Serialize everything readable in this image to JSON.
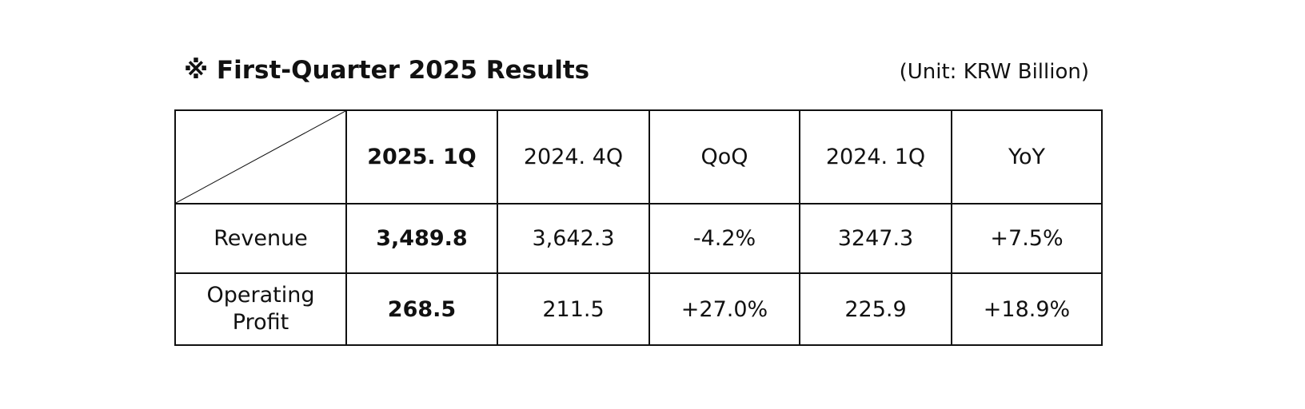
{
  "title": "※ First-Quarter 2025 Results",
  "unit": "(Unit: KRW Billion)",
  "table": {
    "header": [
      "2025. 1Q",
      "2024. 4Q",
      "QoQ",
      "2024. 1Q",
      "YoY"
    ],
    "rows": [
      [
        "Revenue",
        "3,489.8",
        "3,642.3",
        "-4.2%",
        "3247.3",
        "+7.5%"
      ],
      [
        "Operating Profit",
        "268.5",
        "211.5",
        "+27.0%",
        "225.9",
        "+18.9%"
      ]
    ]
  }
}
